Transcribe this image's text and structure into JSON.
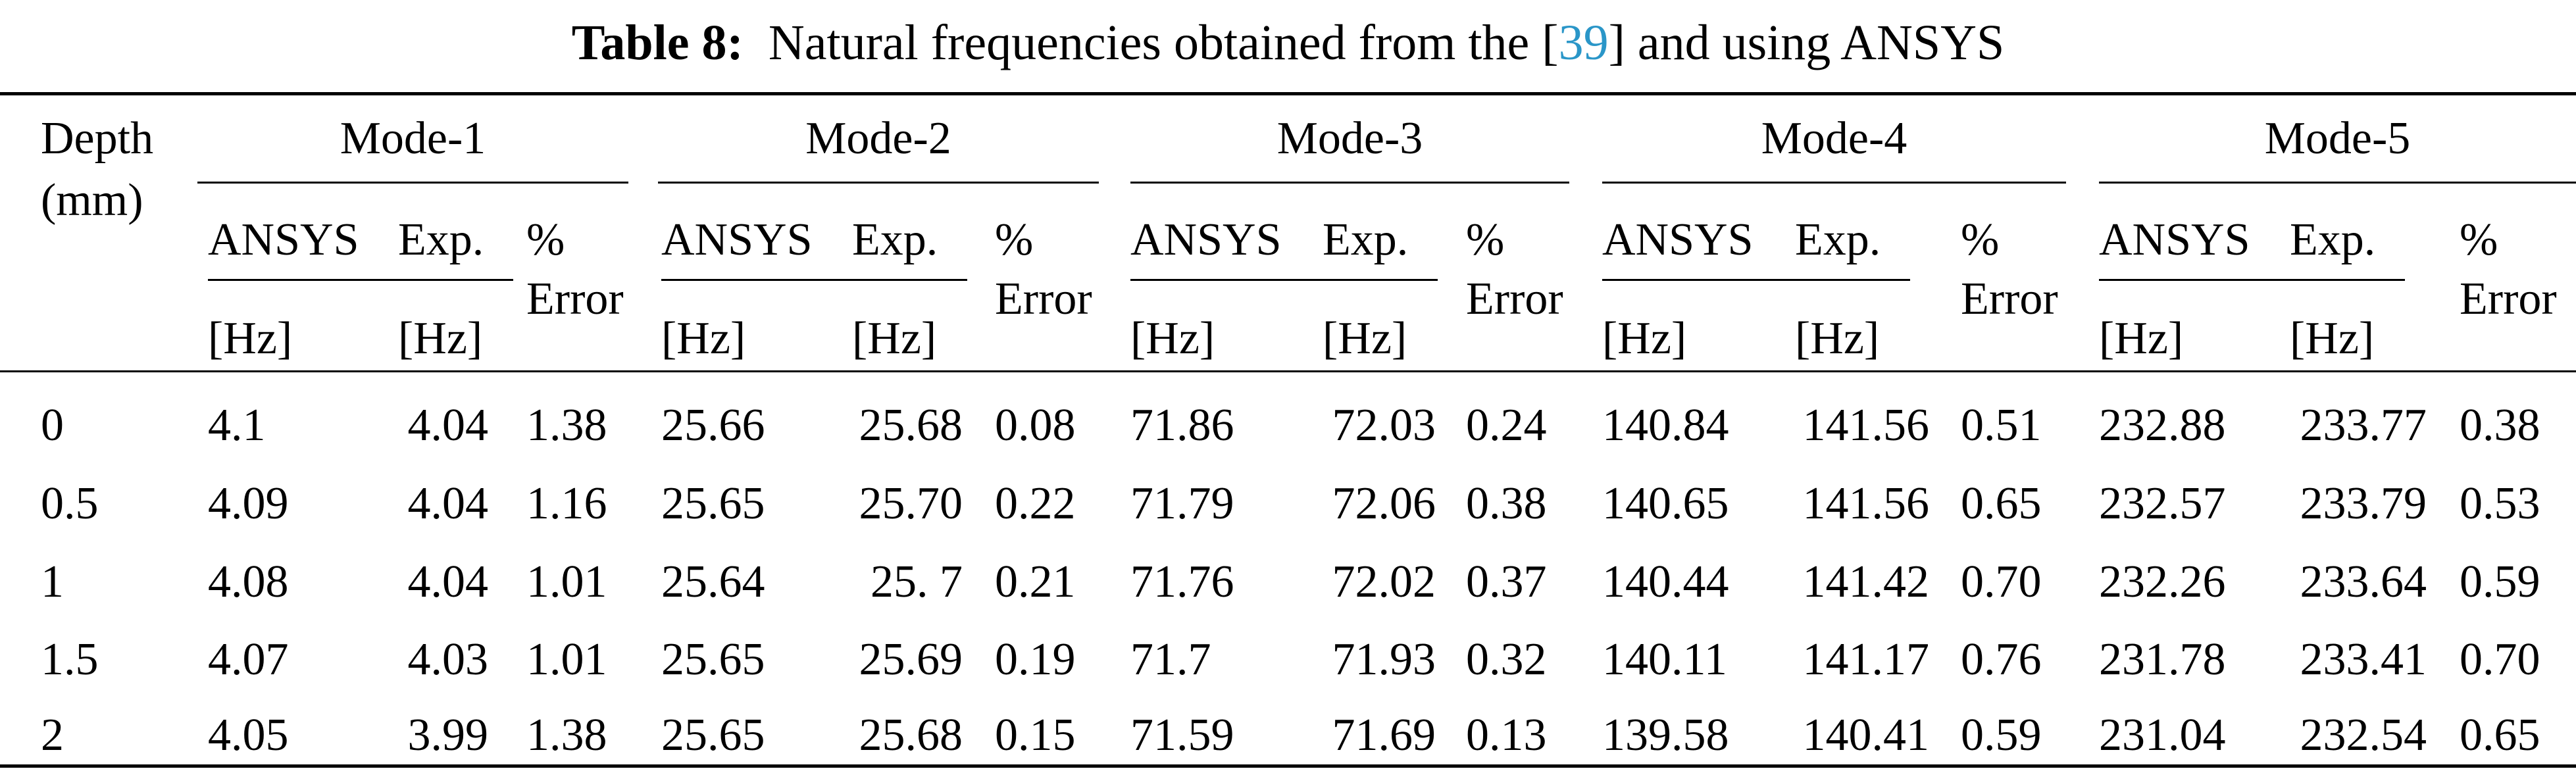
{
  "caption": {
    "label": "Table 8:",
    "text_before": "Natural frequencies obtained from the [",
    "ref": "39",
    "text_after": "] and using ANSYS"
  },
  "header": {
    "depth": "Depth",
    "depth_unit": "(mm)",
    "modes": [
      "Mode-1",
      "Mode-2",
      "Mode-3",
      "Mode-4",
      "Mode-5"
    ],
    "ansys": "ANSYS",
    "exp": "Exp.",
    "hz": "[Hz]",
    "pct": "%",
    "error": "Error"
  },
  "rows": [
    {
      "depth": "0",
      "values": [
        "4.1",
        "4.04",
        "1.38",
        "25.66",
        "25.68",
        "0.08",
        "71.86",
        "72.03",
        "0.24",
        "140.84",
        "141.56",
        "0.51",
        "232.88",
        "233.77",
        "0.38"
      ]
    },
    {
      "depth": "0.5",
      "values": [
        "4.09",
        "4.04",
        "1.16",
        "25.65",
        "25.70",
        "0.22",
        "71.79",
        "72.06",
        "0.38",
        "140.65",
        "141.56",
        "0.65",
        "232.57",
        "233.79",
        "0.53"
      ]
    },
    {
      "depth": "1",
      "values": [
        "4.08",
        "4.04",
        "1.01",
        "25.64",
        "25. 7",
        "0.21",
        "71.76",
        "72.02",
        "0.37",
        "140.44",
        "141.42",
        "0.70",
        "232.26",
        "233.64",
        "0.59"
      ]
    },
    {
      "depth": "1.5",
      "values": [
        "4.07",
        "4.03",
        "1.01",
        "25.65",
        "25.69",
        "0.19",
        "71.7",
        "71.93",
        "0.32",
        "140.11",
        "141.17",
        "0.76",
        "231.78",
        "233.41",
        "0.70"
      ]
    },
    {
      "depth": "2",
      "values": [
        "4.05",
        "3.99",
        "1.38",
        "25.65",
        "25.68",
        "0.15",
        "71.59",
        "71.69",
        "0.13",
        "139.58",
        "140.41",
        "0.59",
        "231.04",
        "232.54",
        "0.65"
      ]
    }
  ]
}
